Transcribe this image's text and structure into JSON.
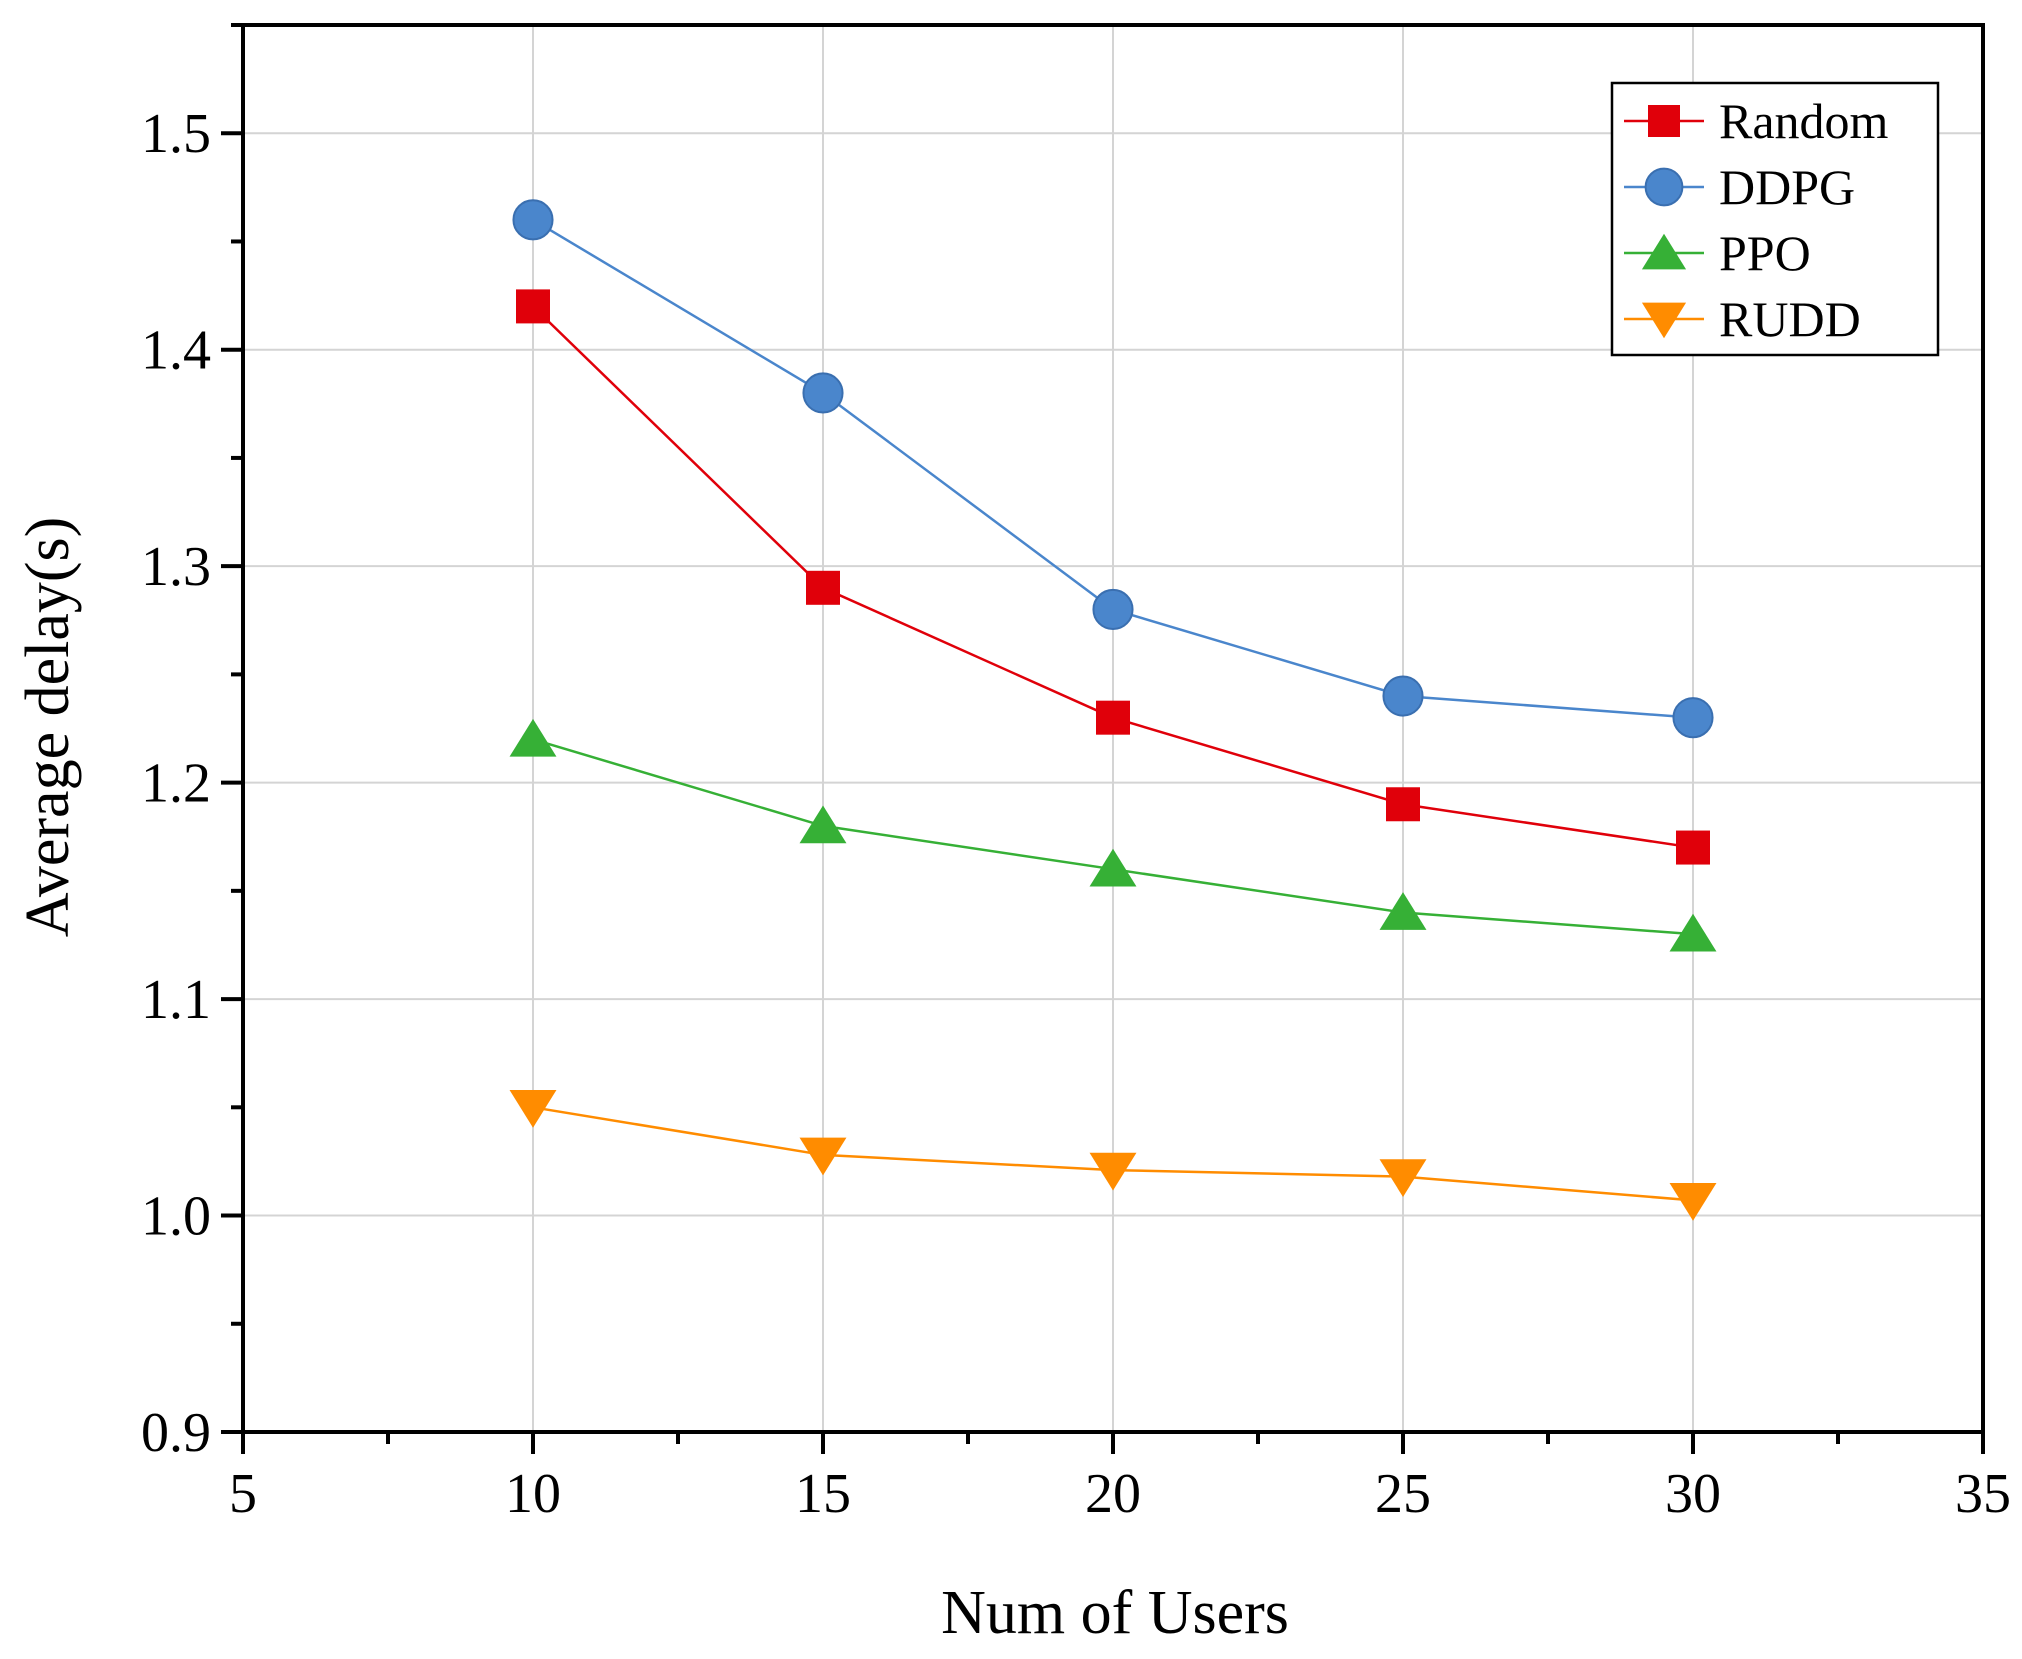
{
  "chart_data": {
    "type": "line",
    "title": "",
    "xlabel": "Num of Users",
    "ylabel": "Average delay(s)",
    "xlim": [
      5,
      35
    ],
    "ylim": [
      0.9,
      1.55
    ],
    "xticks": [
      5,
      10,
      15,
      20,
      25,
      30,
      35
    ],
    "xtick_labels": [
      "5",
      "10",
      "15",
      "20",
      "25",
      "30",
      "35"
    ],
    "yticks": [
      0.9,
      1.0,
      1.1,
      1.2,
      1.3,
      1.4,
      1.5
    ],
    "ytick_labels": [
      "0.9",
      "1.0",
      "1.1",
      "1.2",
      "1.3",
      "1.4",
      "1.5"
    ],
    "grid": true,
    "legend_position": "top-right",
    "x": [
      10,
      15,
      20,
      25,
      30
    ],
    "series": [
      {
        "name": "Random",
        "color": "#e0000a",
        "marker": "square",
        "values": [
          1.42,
          1.29,
          1.23,
          1.19,
          1.17
        ]
      },
      {
        "name": "DDPG",
        "color": "#4a86cc",
        "marker": "circle",
        "values": [
          1.46,
          1.38,
          1.28,
          1.24,
          1.23
        ]
      },
      {
        "name": "PPO",
        "color": "#36b036",
        "marker": "triangle-up",
        "values": [
          1.22,
          1.18,
          1.16,
          1.14,
          1.13
        ]
      },
      {
        "name": "RUDD",
        "color": "#ff8c00",
        "marker": "triangle-down",
        "values": [
          1.05,
          1.028,
          1.021,
          1.018,
          1.007
        ]
      }
    ]
  }
}
